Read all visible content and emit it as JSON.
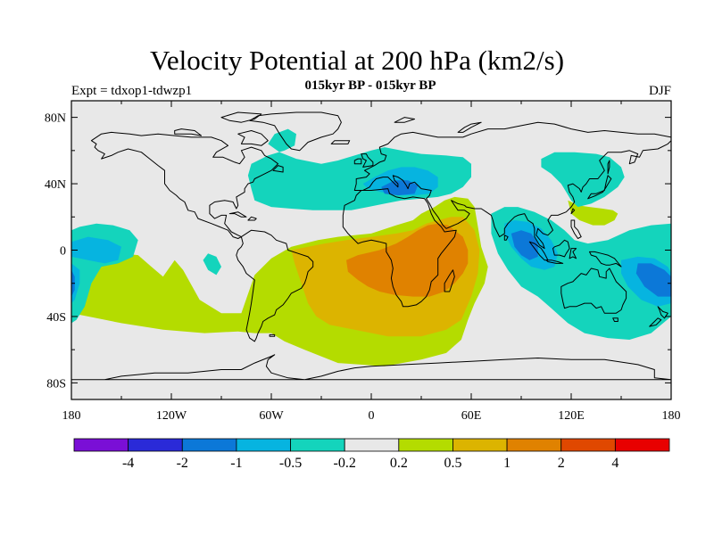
{
  "header": {
    "title": "Velocity Potential at 200 hPa (km2/s)",
    "subtitle": "015kyr BP - 015kyr BP",
    "left_label": "Expt = tdxop1-tdwzp1",
    "right_label": "DJF"
  },
  "map": {
    "projection": "cylindrical-equidistant",
    "lon_range": [
      -180,
      180
    ],
    "lat_range": [
      -90,
      90
    ],
    "lat_ticks": [
      {
        "value": 80,
        "label": "80N"
      },
      {
        "value": 40,
        "label": "40N"
      },
      {
        "value": 0,
        "label": "0"
      },
      {
        "value": -40,
        "label": "40S"
      },
      {
        "value": -80,
        "label": "80S"
      }
    ],
    "lon_ticks": [
      {
        "value": -180,
        "label": "180"
      },
      {
        "value": -120,
        "label": "120W"
      },
      {
        "value": -60,
        "label": "60W"
      },
      {
        "value": 0,
        "label": "0"
      },
      {
        "value": 60,
        "label": "60E"
      },
      {
        "value": 120,
        "label": "120E"
      },
      {
        "value": 180,
        "label": "180"
      }
    ],
    "background_color": "#e8e8e8",
    "coastline_color": "#000000"
  },
  "colorbar": {
    "colors": [
      "#7a0fd6",
      "#2a2ad8",
      "#0c78d8",
      "#06b4e0",
      "#14d4bc",
      "#e8e8e8",
      "#b4dc00",
      "#dcb400",
      "#e08200",
      "#e04800",
      "#e80000"
    ],
    "labels": [
      "-4",
      "-2",
      "-1",
      "-0.5",
      "-0.2",
      "0.2",
      "0.5",
      "1",
      "2",
      "4"
    ]
  },
  "chart_data": {
    "type": "heatmap",
    "variable": "Velocity Potential at 200 hPa",
    "units": "km2/s",
    "levels": [
      -4,
      -2,
      -1,
      -0.5,
      -0.2,
      0.2,
      0.5,
      1,
      2,
      4
    ],
    "regions": [
      {
        "level": 0.2,
        "color": "#b4dc00",
        "poly": [
          [
            -180,
            -20
          ],
          [
            -175,
            -12
          ],
          [
            -165,
            -5
          ],
          [
            -150,
            -2
          ],
          [
            -140,
            -3
          ],
          [
            -132,
            -10
          ],
          [
            -125,
            -16
          ],
          [
            -118,
            -6
          ],
          [
            -113,
            -12
          ],
          [
            -103,
            -30
          ],
          [
            -90,
            -38
          ],
          [
            -78,
            -38
          ],
          [
            -70,
            -15
          ],
          [
            -60,
            -5
          ],
          [
            -48,
            2
          ],
          [
            -32,
            6
          ],
          [
            -20,
            8
          ],
          [
            0,
            10
          ],
          [
            15,
            15
          ],
          [
            25,
            18
          ],
          [
            30,
            22
          ],
          [
            38,
            26
          ],
          [
            44,
            30
          ],
          [
            50,
            32
          ],
          [
            58,
            31
          ],
          [
            62,
            26
          ],
          [
            64,
            14
          ],
          [
            66,
            2
          ],
          [
            70,
            -10
          ],
          [
            68,
            -20
          ],
          [
            62,
            -32
          ],
          [
            58,
            -42
          ],
          [
            54,
            -54
          ],
          [
            45,
            -62
          ],
          [
            30,
            -66
          ],
          [
            8,
            -70
          ],
          [
            -20,
            -68
          ],
          [
            -40,
            -60
          ],
          [
            -52,
            -55
          ],
          [
            -60,
            -50
          ],
          [
            -70,
            -50
          ],
          [
            -80,
            -49
          ],
          [
            -100,
            -50
          ],
          [
            -125,
            -48
          ],
          [
            -150,
            -44
          ],
          [
            -170,
            -40
          ],
          [
            -180,
            -38
          ]
        ]
      },
      {
        "level": 0.2,
        "color": "#b4dc00",
        "poly": [
          [
            118,
            30
          ],
          [
            124,
            27
          ],
          [
            131,
            26
          ],
          [
            139,
            25
          ],
          [
            145,
            24
          ],
          [
            148,
            22
          ],
          [
            146,
            18
          ],
          [
            140,
            15
          ],
          [
            133,
            15
          ],
          [
            125,
            18
          ],
          [
            120,
            22
          ]
        ]
      },
      {
        "level": 0.5,
        "color": "#dcb400",
        "poly": [
          [
            -48,
            0
          ],
          [
            -38,
            2
          ],
          [
            -28,
            4
          ],
          [
            -15,
            6
          ],
          [
            0,
            8
          ],
          [
            15,
            10
          ],
          [
            25,
            12
          ],
          [
            33,
            16
          ],
          [
            40,
            18
          ],
          [
            48,
            20
          ],
          [
            55,
            20
          ],
          [
            62,
            12
          ],
          [
            65,
            0
          ],
          [
            64,
            -14
          ],
          [
            60,
            -28
          ],
          [
            54,
            -42
          ],
          [
            45,
            -48
          ],
          [
            30,
            -52
          ],
          [
            10,
            -52
          ],
          [
            -10,
            -48
          ],
          [
            -25,
            -45
          ],
          [
            -33,
            -40
          ],
          [
            -38,
            -32
          ],
          [
            -42,
            -20
          ],
          [
            -46,
            -8
          ]
        ]
      },
      {
        "level": 1,
        "color": "#e08200",
        "poly": [
          [
            -15,
            -6
          ],
          [
            -8,
            -3
          ],
          [
            5,
            0
          ],
          [
            15,
            4
          ],
          [
            22,
            8
          ],
          [
            28,
            12
          ],
          [
            34,
            15
          ],
          [
            40,
            16
          ],
          [
            46,
            15
          ],
          [
            50,
            12
          ],
          [
            55,
            8
          ],
          [
            58,
            0
          ],
          [
            58,
            -8
          ],
          [
            55,
            -14
          ],
          [
            50,
            -20
          ],
          [
            44,
            -25
          ],
          [
            35,
            -28
          ],
          [
            25,
            -28
          ],
          [
            14,
            -27
          ],
          [
            5,
            -25
          ],
          [
            -2,
            -22
          ],
          [
            -8,
            -18
          ],
          [
            -14,
            -13
          ]
        ]
      },
      {
        "level": -0.2,
        "color": "#14d4bc",
        "poly": [
          [
            -180,
            12
          ],
          [
            -175,
            14
          ],
          [
            -165,
            16
          ],
          [
            -155,
            15
          ],
          [
            -145,
            12
          ],
          [
            -140,
            6
          ],
          [
            -143,
            -4
          ],
          [
            -152,
            -8
          ],
          [
            -162,
            -10
          ],
          [
            -168,
            -20
          ],
          [
            -172,
            -34
          ],
          [
            -177,
            -42
          ],
          [
            -180,
            -44
          ]
        ]
      },
      {
        "level": -0.2,
        "color": "#14d4bc",
        "poly": [
          [
            -72,
            37
          ],
          [
            -74,
            45
          ],
          [
            -72,
            52
          ],
          [
            -62,
            57
          ],
          [
            -52,
            60
          ],
          [
            -46,
            63
          ],
          [
            -45,
            70
          ],
          [
            -50,
            73
          ],
          [
            -58,
            70
          ],
          [
            -62,
            64
          ],
          [
            -55,
            59
          ],
          [
            -45,
            55
          ],
          [
            -30,
            52
          ],
          [
            -20,
            54
          ],
          [
            -10,
            57
          ],
          [
            0,
            60
          ],
          [
            8,
            62
          ],
          [
            18,
            60
          ],
          [
            30,
            58
          ],
          [
            45,
            57
          ],
          [
            55,
            56
          ],
          [
            60,
            52
          ],
          [
            60,
            44
          ],
          [
            55,
            38
          ],
          [
            48,
            34
          ],
          [
            40,
            32
          ],
          [
            30,
            31
          ],
          [
            18,
            30
          ],
          [
            8,
            28
          ],
          [
            -2,
            26
          ],
          [
            -12,
            24
          ],
          [
            -22,
            24
          ],
          [
            -35,
            24
          ],
          [
            -48,
            25
          ],
          [
            -60,
            26
          ],
          [
            -70,
            30
          ]
        ]
      },
      {
        "level": -0.2,
        "color": "#14d4bc",
        "poly": [
          [
            -98,
            -2
          ],
          [
            -93,
            -4
          ],
          [
            -90,
            -10
          ],
          [
            -93,
            -15
          ],
          [
            -98,
            -12
          ],
          [
            -101,
            -6
          ]
        ]
      },
      {
        "level": -0.2,
        "color": "#14d4bc",
        "poly": [
          [
            102,
            55
          ],
          [
            110,
            59
          ],
          [
            122,
            59
          ],
          [
            135,
            58
          ],
          [
            143,
            56
          ],
          [
            150,
            50
          ],
          [
            152,
            44
          ],
          [
            148,
            38
          ],
          [
            140,
            32
          ],
          [
            132,
            28
          ],
          [
            124,
            26
          ],
          [
            120,
            30
          ],
          [
            114,
            40
          ],
          [
            108,
            46
          ],
          [
            102,
            50
          ]
        ]
      },
      {
        "level": -0.2,
        "color": "#14d4bc",
        "poly": [
          [
            72,
            22
          ],
          [
            80,
            26
          ],
          [
            88,
            26
          ],
          [
            98,
            23
          ],
          [
            108,
            18
          ],
          [
            116,
            12
          ],
          [
            122,
            6
          ],
          [
            130,
            4
          ],
          [
            142,
            6
          ],
          [
            155,
            12
          ],
          [
            168,
            15
          ],
          [
            180,
            16
          ],
          [
            180,
            -40
          ],
          [
            168,
            -50
          ],
          [
            155,
            -54
          ],
          [
            142,
            -53
          ],
          [
            128,
            -50
          ],
          [
            118,
            -44
          ],
          [
            108,
            -35
          ],
          [
            100,
            -28
          ],
          [
            90,
            -22
          ],
          [
            82,
            -12
          ],
          [
            76,
            -2
          ],
          [
            72,
            10
          ]
        ]
      },
      {
        "level": -0.5,
        "color": "#06b4e0",
        "poly": [
          [
            -180,
            5
          ],
          [
            -170,
            8
          ],
          [
            -158,
            6
          ],
          [
            -150,
            2
          ],
          [
            -152,
            -6
          ],
          [
            -160,
            -8
          ],
          [
            -170,
            -6
          ],
          [
            -180,
            -4
          ]
        ]
      },
      {
        "level": -0.5,
        "color": "#06b4e0",
        "poly": [
          [
            -180,
            -8
          ],
          [
            -175,
            -12
          ],
          [
            -175,
            -20
          ],
          [
            -178,
            -30
          ],
          [
            -180,
            -32
          ]
        ]
      },
      {
        "level": -0.5,
        "color": "#06b4e0",
        "poly": [
          [
            -5,
            40
          ],
          [
            2,
            44
          ],
          [
            10,
            48
          ],
          [
            18,
            50
          ],
          [
            26,
            50
          ],
          [
            34,
            48
          ],
          [
            40,
            44
          ],
          [
            40,
            38
          ],
          [
            35,
            34
          ],
          [
            26,
            33
          ],
          [
            16,
            33
          ],
          [
            6,
            35
          ],
          [
            -2,
            37
          ]
        ]
      },
      {
        "level": -0.5,
        "color": "#06b4e0",
        "poly": [
          [
            80,
            16
          ],
          [
            86,
            18
          ],
          [
            94,
            17
          ],
          [
            102,
            13
          ],
          [
            108,
            6
          ],
          [
            112,
            -2
          ],
          [
            110,
            -10
          ],
          [
            104,
            -12
          ],
          [
            96,
            -10
          ],
          [
            90,
            -5
          ],
          [
            84,
            2
          ],
          [
            80,
            10
          ]
        ]
      },
      {
        "level": -0.5,
        "color": "#06b4e0",
        "poly": [
          [
            150,
            -6
          ],
          [
            160,
            -4
          ],
          [
            170,
            -5
          ],
          [
            178,
            -10
          ],
          [
            180,
            -14
          ],
          [
            180,
            -32
          ],
          [
            172,
            -34
          ],
          [
            162,
            -30
          ],
          [
            154,
            -22
          ],
          [
            150,
            -14
          ]
        ]
      },
      {
        "level": -1,
        "color": "#0c78d8",
        "poly": [
          [
            -180,
            -12
          ],
          [
            -178,
            -16
          ],
          [
            -178,
            -24
          ],
          [
            -180,
            -28
          ]
        ]
      },
      {
        "level": -1,
        "color": "#0c78d8",
        "poly": [
          [
            6,
            38
          ],
          [
            14,
            42
          ],
          [
            22,
            42
          ],
          [
            28,
            39
          ],
          [
            26,
            34
          ],
          [
            16,
            33
          ],
          [
            8,
            34
          ]
        ]
      },
      {
        "level": -1,
        "color": "#0c78d8",
        "poly": [
          [
            84,
            10
          ],
          [
            90,
            12
          ],
          [
            96,
            10
          ],
          [
            100,
            4
          ],
          [
            100,
            -4
          ],
          [
            95,
            -6
          ],
          [
            90,
            -3
          ],
          [
            86,
            2
          ]
        ]
      },
      {
        "level": -1,
        "color": "#0c78d8",
        "poly": [
          [
            160,
            -8
          ],
          [
            168,
            -8
          ],
          [
            176,
            -12
          ],
          [
            180,
            -16
          ],
          [
            180,
            -28
          ],
          [
            172,
            -28
          ],
          [
            164,
            -22
          ],
          [
            159,
            -14
          ]
        ]
      }
    ]
  }
}
